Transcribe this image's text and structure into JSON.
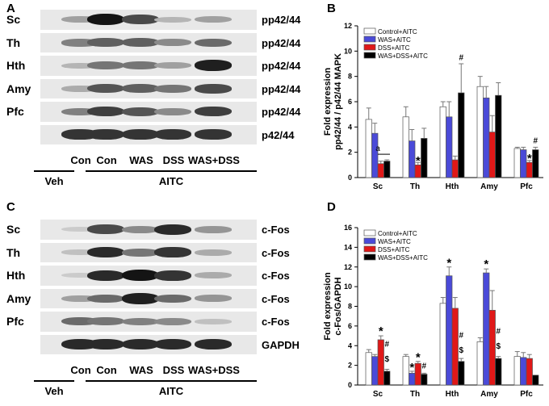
{
  "panels": {
    "A": {
      "letter": "A",
      "rows": [
        {
          "tissue": "Sc",
          "protein": "pp42/44",
          "intensities": [
            0.35,
            1.0,
            0.75,
            0.25,
            0.35
          ]
        },
        {
          "tissue": "Th",
          "protein": "pp42/44",
          "intensities": [
            0.5,
            0.65,
            0.65,
            0.45,
            0.6
          ]
        },
        {
          "tissue": "Hth",
          "protein": "pp42/44",
          "intensities": [
            0.25,
            0.55,
            0.55,
            0.35,
            0.95
          ]
        },
        {
          "tissue": "Amy",
          "protein": "pp42/44",
          "intensities": [
            0.3,
            0.7,
            0.65,
            0.55,
            0.75
          ]
        },
        {
          "tissue": "Pfc",
          "protein": "pp42/44",
          "intensities": [
            0.5,
            0.8,
            0.7,
            0.45,
            0.8
          ]
        },
        {
          "tissue": "",
          "protein": "p42/44",
          "intensities": [
            0.85,
            0.85,
            0.85,
            0.85,
            0.85
          ]
        }
      ],
      "lanes": [
        "Con",
        "Con",
        "WAS",
        "DSS",
        "WAS+DSS"
      ],
      "group_veh": "Veh",
      "group_aitc": "AITC"
    },
    "C": {
      "letter": "C",
      "rows": [
        {
          "tissue": "Sc",
          "protein": "c-Fos",
          "intensities": [
            0.15,
            0.75,
            0.45,
            0.9,
            0.4
          ]
        },
        {
          "tissue": "Th",
          "protein": "c-Fos",
          "intensities": [
            0.2,
            0.9,
            0.55,
            0.85,
            0.3
          ]
        },
        {
          "tissue": "Hth",
          "protein": "c-Fos",
          "intensities": [
            0.15,
            0.9,
            1.0,
            0.85,
            0.3
          ]
        },
        {
          "tissue": "Amy",
          "protein": "c-Fos",
          "intensities": [
            0.35,
            0.6,
            0.95,
            0.6,
            0.4
          ]
        },
        {
          "tissue": "Pfc",
          "protein": "c-Fos",
          "intensities": [
            0.6,
            0.55,
            0.5,
            0.45,
            0.2
          ]
        },
        {
          "tissue": "",
          "protein": "GAPDH",
          "intensities": [
            0.9,
            0.9,
            0.9,
            0.9,
            0.9
          ]
        }
      ],
      "lanes": [
        "Con",
        "Con",
        "WAS",
        "DSS",
        "WAS+DSS"
      ],
      "group_veh": "Veh",
      "group_aitc": "AITC"
    }
  },
  "chart_data": [
    {
      "panel": "B",
      "type": "bar",
      "ylabel_line1": "Fold expression",
      "ylabel_line2": "pp42/44 / p42/44 MAPK",
      "categories": [
        "Sc",
        "Th",
        "Hth",
        "Amy",
        "Pfc"
      ],
      "ylim": [
        0,
        12
      ],
      "yticks": [
        0,
        2,
        4,
        6,
        8,
        10,
        12
      ],
      "legend_position": "top-left",
      "series": [
        {
          "name": "Control+AITC",
          "color": "#ffffff",
          "values": [
            4.6,
            4.8,
            5.6,
            7.2,
            2.3
          ],
          "errors": [
            0.9,
            0.8,
            0.4,
            0.8,
            0.1
          ]
        },
        {
          "name": "WAS+AITC",
          "color": "#4a4ad8",
          "values": [
            3.5,
            2.9,
            4.8,
            6.3,
            2.2
          ],
          "errors": [
            0.8,
            0.9,
            1.2,
            0.9,
            0.2
          ]
        },
        {
          "name": "DSS+AITC",
          "color": "#e01818",
          "values": [
            1.1,
            1.0,
            1.4,
            3.6,
            1.2
          ],
          "errors": [
            0.2,
            0.2,
            0.3,
            1.3,
            0.15
          ]
        },
        {
          "name": "WAS+DSS+AITC",
          "color": "#000000",
          "values": [
            1.3,
            3.1,
            6.7,
            6.5,
            2.2
          ],
          "errors": [
            0.1,
            0.8,
            2.3,
            1.0,
            0.2
          ]
        }
      ],
      "annotations": [
        {
          "text": "a",
          "category": "Sc",
          "y": 2.1
        },
        {
          "text": "*",
          "category": "Th",
          "series": 2,
          "y": 1.4
        },
        {
          "text": "#",
          "category": "Hth",
          "series": 3,
          "y": 9.3
        },
        {
          "text": "*",
          "category": "Pfc",
          "series": 2,
          "y": 1.6
        },
        {
          "text": "#",
          "category": "Pfc",
          "series": 3,
          "y": 2.7
        }
      ]
    },
    {
      "panel": "D",
      "type": "bar",
      "ylabel_line1": "Fold expression",
      "ylabel_line2": "c-Fos/GAPDH",
      "categories": [
        "Sc",
        "Th",
        "Hth",
        "Amy",
        "Pfc"
      ],
      "ylim": [
        0,
        16
      ],
      "yticks": [
        0,
        2,
        4,
        6,
        8,
        10,
        12,
        14,
        16
      ],
      "legend_position": "top-left",
      "series": [
        {
          "name": "Control+AITC",
          "color": "#ffffff",
          "values": [
            3.3,
            2.9,
            8.3,
            4.4,
            2.9
          ],
          "errors": [
            0.3,
            0.2,
            0.6,
            0.4,
            0.5
          ]
        },
        {
          "name": "WAS+AITC",
          "color": "#4a4ad8",
          "values": [
            2.9,
            1.2,
            11.1,
            11.4,
            2.8
          ],
          "errors": [
            0.2,
            0.2,
            0.9,
            0.4,
            0.5
          ]
        },
        {
          "name": "DSS+AITC",
          "color": "#e01818",
          "values": [
            4.6,
            2.2,
            7.8,
            7.6,
            2.7
          ],
          "errors": [
            0.4,
            0.2,
            1.1,
            2.0,
            0.4
          ]
        },
        {
          "name": "WAS+DSS+AITC",
          "color": "#000000",
          "values": [
            1.4,
            1.1,
            2.4,
            2.7,
            1.0
          ],
          "errors": [
            0.2,
            0.1,
            0.3,
            0.2,
            0.0
          ]
        }
      ],
      "annotations": [
        {
          "text": "*",
          "category": "Sc",
          "series": 2,
          "y": 5.6
        },
        {
          "text": "#",
          "category": "Sc",
          "series": 3,
          "y": 3.9
        },
        {
          "text": "$",
          "category": "Sc",
          "series": 3,
          "y": 2.4
        },
        {
          "text": "*",
          "category": "Th",
          "series": 1,
          "y": 1.9
        },
        {
          "text": "*",
          "category": "Th",
          "series": 2,
          "y": 2.9
        },
        {
          "text": "#",
          "category": "Th",
          "series": 3,
          "y": 1.7
        },
        {
          "text": "*",
          "category": "Hth",
          "series": 1,
          "y": 12.5
        },
        {
          "text": "#",
          "category": "Hth",
          "series": 3,
          "y": 4.8
        },
        {
          "text": "$",
          "category": "Hth",
          "series": 3,
          "y": 3.3
        },
        {
          "text": "*",
          "category": "Amy",
          "series": 1,
          "y": 12.4
        },
        {
          "text": "#",
          "category": "Amy",
          "series": 3,
          "y": 5.2
        },
        {
          "text": "$",
          "category": "Amy",
          "series": 3,
          "y": 3.7
        }
      ]
    }
  ]
}
